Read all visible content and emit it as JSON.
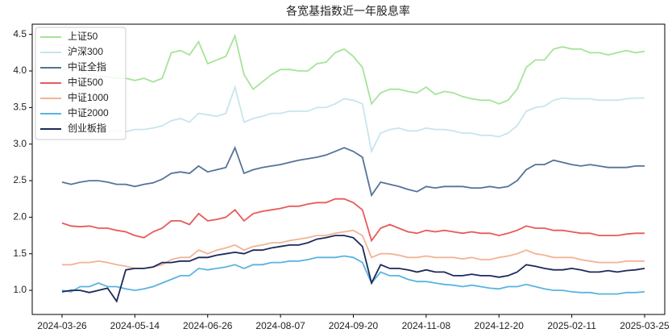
{
  "chart_data": {
    "type": "line",
    "title": "各宽基指数近一年股息率",
    "categories": [
      "2024-03-26",
      null,
      null,
      null,
      null,
      null,
      null,
      null,
      "2024-05-14",
      null,
      null,
      null,
      null,
      null,
      null,
      null,
      "2024-06-26",
      null,
      null,
      null,
      null,
      null,
      null,
      null,
      "2024-08-07",
      null,
      null,
      null,
      null,
      null,
      null,
      null,
      "2024-09-20",
      null,
      null,
      null,
      null,
      null,
      null,
      null,
      "2024-11-08",
      null,
      null,
      null,
      null,
      null,
      null,
      null,
      "2024-12-20",
      null,
      null,
      null,
      null,
      null,
      null,
      null,
      "2025-02-11",
      null,
      null,
      null,
      null,
      null,
      null,
      null,
      "2025-03-25"
    ],
    "ylim": [
      0.67,
      4.64
    ],
    "yticks": [
      {
        "value": 1,
        "label": "1.0"
      },
      1.5,
      {
        "value": 2,
        "label": "2.0"
      },
      2.5,
      {
        "value": 3,
        "label": "3.0"
      },
      3.5,
      {
        "value": 4,
        "label": "4.0"
      },
      4.5
    ],
    "legend": "upper left",
    "series": [
      {
        "name": "上证50",
        "color": "#a6e39a",
        "values": [
          4.0,
          4.05,
          4.0,
          3.95,
          3.93,
          3.92,
          3.9,
          3.9,
          3.87,
          3.9,
          3.85,
          3.9,
          4.25,
          4.28,
          4.22,
          4.4,
          4.1,
          4.15,
          4.2,
          4.48,
          3.95,
          3.75,
          3.85,
          3.95,
          4.02,
          4.02,
          4.0,
          4.0,
          4.1,
          4.12,
          4.25,
          4.3,
          4.2,
          4.05,
          3.55,
          3.7,
          3.75,
          3.75,
          3.72,
          3.7,
          3.78,
          3.68,
          3.72,
          3.7,
          3.65,
          3.62,
          3.6,
          3.6,
          3.55,
          3.6,
          3.75,
          4.05,
          4.15,
          4.15,
          4.3,
          4.33,
          4.3,
          4.3,
          4.25,
          4.25,
          4.22,
          4.25,
          4.28,
          4.25,
          4.27
        ]
      },
      {
        "name": "沪深300",
        "color": "#c9e4ee",
        "values": [
          3.25,
          3.25,
          3.22,
          3.2,
          3.18,
          3.17,
          3.18,
          3.17,
          3.2,
          3.2,
          3.22,
          3.25,
          3.32,
          3.35,
          3.3,
          3.42,
          3.4,
          3.38,
          3.42,
          3.78,
          3.3,
          3.35,
          3.38,
          3.42,
          3.42,
          3.45,
          3.45,
          3.45,
          3.5,
          3.5,
          3.55,
          3.62,
          3.6,
          3.55,
          2.9,
          3.15,
          3.2,
          3.22,
          3.18,
          3.18,
          3.22,
          3.2,
          3.2,
          3.18,
          3.15,
          3.15,
          3.12,
          3.12,
          3.1,
          3.15,
          3.25,
          3.45,
          3.5,
          3.52,
          3.6,
          3.63,
          3.62,
          3.62,
          3.62,
          3.6,
          3.6,
          3.6,
          3.62,
          3.63,
          3.63
        ]
      },
      {
        "name": "中证全指",
        "color": "#557398",
        "values": [
          2.48,
          2.45,
          2.48,
          2.5,
          2.5,
          2.48,
          2.45,
          2.45,
          2.42,
          2.45,
          2.47,
          2.52,
          2.6,
          2.62,
          2.6,
          2.7,
          2.62,
          2.65,
          2.68,
          2.95,
          2.6,
          2.65,
          2.68,
          2.7,
          2.72,
          2.75,
          2.78,
          2.8,
          2.82,
          2.85,
          2.9,
          2.95,
          2.9,
          2.82,
          2.3,
          2.48,
          2.45,
          2.42,
          2.38,
          2.35,
          2.42,
          2.4,
          2.42,
          2.42,
          2.42,
          2.4,
          2.4,
          2.42,
          2.4,
          2.42,
          2.5,
          2.65,
          2.72,
          2.72,
          2.78,
          2.75,
          2.72,
          2.7,
          2.72,
          2.7,
          2.68,
          2.68,
          2.68,
          2.7,
          2.7
        ]
      },
      {
        "name": "中证500",
        "color": "#e85a5a",
        "values": [
          1.92,
          1.88,
          1.87,
          1.88,
          1.85,
          1.85,
          1.82,
          1.8,
          1.75,
          1.72,
          1.8,
          1.85,
          1.95,
          1.95,
          1.9,
          2.05,
          1.95,
          1.97,
          2.0,
          2.1,
          1.95,
          2.05,
          2.08,
          2.1,
          2.12,
          2.15,
          2.15,
          2.18,
          2.2,
          2.2,
          2.25,
          2.25,
          2.2,
          2.1,
          1.68,
          1.85,
          1.9,
          1.85,
          1.8,
          1.78,
          1.82,
          1.8,
          1.82,
          1.8,
          1.78,
          1.8,
          1.78,
          1.78,
          1.75,
          1.78,
          1.82,
          1.88,
          1.85,
          1.85,
          1.82,
          1.82,
          1.8,
          1.78,
          1.78,
          1.75,
          1.75,
          1.75,
          1.77,
          1.78,
          1.78
        ]
      },
      {
        "name": "中证1000",
        "color": "#f2b396",
        "values": [
          1.35,
          1.35,
          1.38,
          1.38,
          1.4,
          1.38,
          1.35,
          1.33,
          1.3,
          1.3,
          1.32,
          1.35,
          1.42,
          1.45,
          1.45,
          1.55,
          1.5,
          1.55,
          1.58,
          1.62,
          1.55,
          1.6,
          1.62,
          1.65,
          1.65,
          1.68,
          1.7,
          1.72,
          1.75,
          1.75,
          1.78,
          1.8,
          1.82,
          1.75,
          1.45,
          1.5,
          1.5,
          1.48,
          1.45,
          1.45,
          1.47,
          1.45,
          1.45,
          1.45,
          1.43,
          1.45,
          1.42,
          1.42,
          1.45,
          1.47,
          1.5,
          1.55,
          1.5,
          1.48,
          1.45,
          1.45,
          1.45,
          1.42,
          1.4,
          1.38,
          1.38,
          1.38,
          1.4,
          1.4,
          1.4
        ]
      },
      {
        "name": "中证2000",
        "color": "#5ab4df",
        "values": [
          1.0,
          0.98,
          1.05,
          1.05,
          1.1,
          1.05,
          1.05,
          1.02,
          1.0,
          1.02,
          1.05,
          1.1,
          1.15,
          1.2,
          1.2,
          1.3,
          1.28,
          1.3,
          1.32,
          1.35,
          1.3,
          1.35,
          1.35,
          1.38,
          1.38,
          1.4,
          1.4,
          1.42,
          1.45,
          1.45,
          1.45,
          1.47,
          1.45,
          1.38,
          1.1,
          1.25,
          1.2,
          1.2,
          1.15,
          1.12,
          1.12,
          1.1,
          1.08,
          1.07,
          1.05,
          1.07,
          1.05,
          1.03,
          1.02,
          1.05,
          1.05,
          1.08,
          1.05,
          1.02,
          1.0,
          1.0,
          0.98,
          0.97,
          0.97,
          0.95,
          0.95,
          0.95,
          0.97,
          0.97,
          0.98
        ]
      },
      {
        "name": "创业板指",
        "color": "#1b2a5a",
        "values": [
          0.98,
          1.0,
          1.0,
          0.97,
          1.0,
          1.03,
          0.85,
          1.28,
          1.3,
          1.3,
          1.32,
          1.38,
          1.38,
          1.4,
          1.4,
          1.45,
          1.45,
          1.48,
          1.5,
          1.52,
          1.5,
          1.55,
          1.55,
          1.58,
          1.6,
          1.62,
          1.62,
          1.65,
          1.7,
          1.72,
          1.75,
          1.75,
          1.72,
          1.6,
          1.1,
          1.35,
          1.3,
          1.3,
          1.28,
          1.25,
          1.28,
          1.25,
          1.25,
          1.2,
          1.2,
          1.22,
          1.2,
          1.2,
          1.18,
          1.2,
          1.25,
          1.35,
          1.33,
          1.3,
          1.28,
          1.28,
          1.3,
          1.28,
          1.25,
          1.25,
          1.27,
          1.25,
          1.27,
          1.28,
          1.3
        ]
      }
    ]
  }
}
